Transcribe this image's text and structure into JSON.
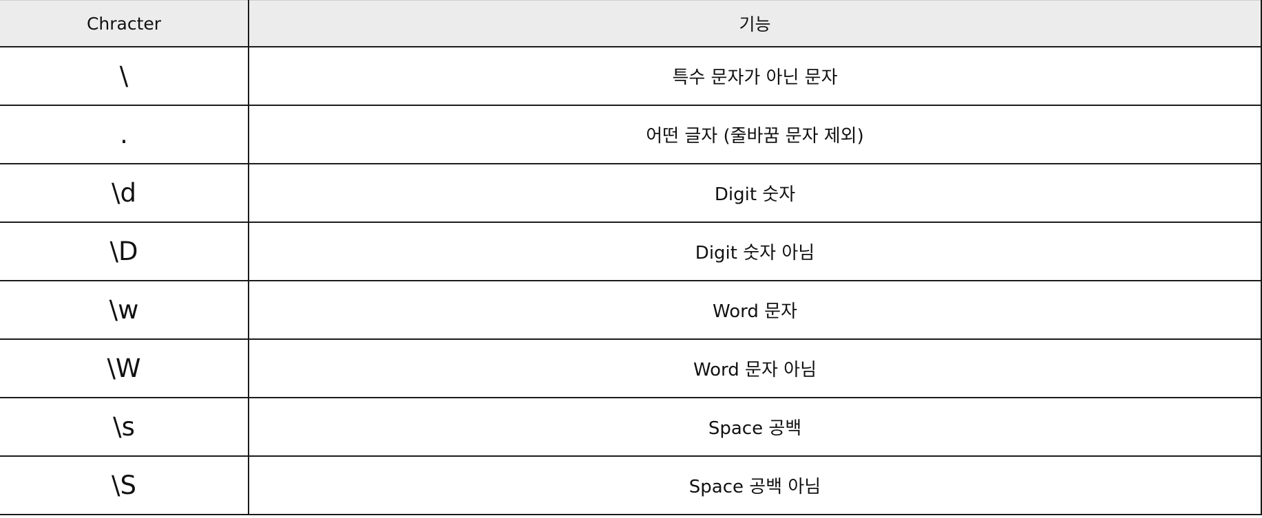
{
  "table": {
    "headers": {
      "character": "Chracter",
      "function": "기능"
    },
    "rows": [
      {
        "character": "\\",
        "function": "특수 문자가 아닌 문자"
      },
      {
        "character": ".",
        "function": "어떤 글자 (줄바꿈 문자 제외)"
      },
      {
        "character": "\\d",
        "function": "Digit 숫자"
      },
      {
        "character": "\\D",
        "function": "Digit 숫자 아님"
      },
      {
        "character": "\\w",
        "function": "Word 문자"
      },
      {
        "character": "\\W",
        "function": "Word 문자 아님"
      },
      {
        "character": "\\s",
        "function": "Space 공백"
      },
      {
        "character": "\\S",
        "function": "Space 공백 아님"
      }
    ]
  }
}
